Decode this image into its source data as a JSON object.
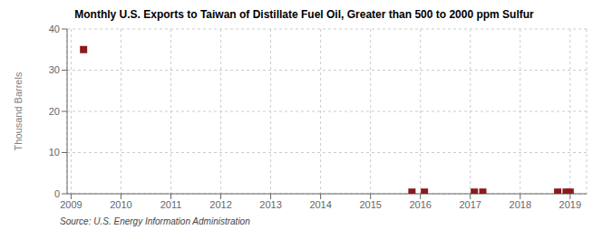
{
  "chart_data": {
    "type": "scatter",
    "title": "Monthly U.S. Exports to Taiwan of Distillate Fuel Oil, Greater than 500 to 2000 ppm Sulfur",
    "y_label": "Thousand Barrels",
    "annotations": [
      "Source: U.S. Energy Information Administration"
    ],
    "x": [
      2009.25,
      2015.83,
      2016.08,
      2017.08,
      2017.25,
      2018.75,
      2018.92,
      2019.0
    ],
    "values": [
      35,
      0.4,
      0.4,
      0.4,
      0.4,
      0.4,
      0.4,
      0.4
    ],
    "color": "#8b1a1a",
    "marker": "square",
    "xlim": [
      2008.92,
      2019.33
    ],
    "ylim": [
      0,
      40
    ],
    "xticks": [
      2009,
      2010,
      2011,
      2012,
      2013,
      2014,
      2015,
      2016,
      2017,
      2018,
      2019
    ],
    "yticks": [
      0,
      10,
      20,
      30,
      40
    ],
    "grid": true
  }
}
